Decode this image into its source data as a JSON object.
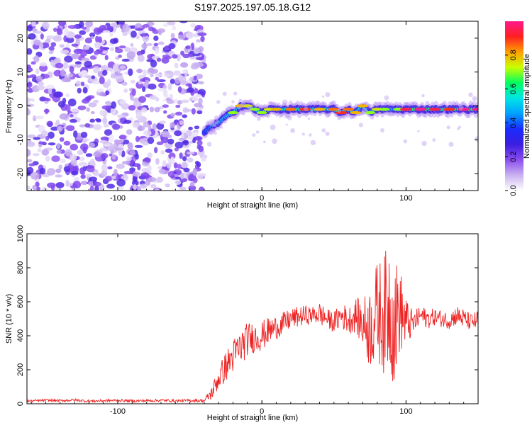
{
  "title": "S197.2025.197.05.18.G12",
  "chart_data": [
    {
      "type": "heatmap",
      "xlabel": "Height of straight line (km)",
      "ylabel": "Frequency (Hz)",
      "xlim": [
        -163,
        150
      ],
      "ylim": [
        -25,
        25
      ],
      "xticks": [
        -100,
        0,
        100
      ],
      "yticks": [
        -20,
        -10,
        0,
        10,
        20
      ],
      "colorbar": {
        "label": "Normalized spectral amplitude",
        "range": [
          0,
          1
        ],
        "ticks": [
          0.0,
          0.2,
          0.4,
          0.6,
          0.8
        ],
        "tick_labels": [
          "0.0",
          "0.2",
          "0.4",
          "0.6",
          "0.8"
        ],
        "colors": [
          "#ffffff",
          "#c9b2f0",
          "#8a4df0",
          "#3b1ee0",
          "#1a2cff",
          "#00a0ff",
          "#00e5e5",
          "#00ff60",
          "#c8ff00",
          "#ffa000",
          "#ff2020",
          "#ff1a8c"
        ]
      },
      "noise_region_x": [
        -163,
        -40
      ],
      "ridge": {
        "x": [
          -40,
          -35,
          -30,
          -25,
          -20,
          -15,
          -10,
          -5,
          0,
          5,
          10,
          20,
          30,
          40,
          50,
          55,
          60,
          65,
          70,
          75,
          80,
          85,
          90,
          95,
          100,
          110,
          120,
          130,
          140,
          150
        ],
        "freq": [
          -8,
          -6,
          -5,
          -3,
          -2,
          0,
          0,
          -1,
          -2,
          -1,
          -1,
          -1,
          -1,
          -1,
          -1,
          -2,
          -1,
          -2,
          0,
          -2,
          -1,
          -1,
          -1,
          -1,
          -1,
          -1,
          -1,
          -1,
          -1,
          -1
        ],
        "amplitude": [
          0.35,
          0.45,
          0.5,
          0.55,
          0.6,
          0.7,
          0.65,
          0.6,
          0.6,
          0.65,
          0.7,
          0.75,
          0.8,
          0.7,
          0.75,
          0.8,
          0.75,
          0.7,
          0.7,
          0.6,
          0.65,
          0.6,
          0.55,
          0.6,
          0.85,
          0.9,
          0.85,
          0.8,
          0.9,
          0.9
        ]
      }
    },
    {
      "type": "line",
      "xlabel": "Height of straight line (km)",
      "ylabel": "SNR (10 * v/v)",
      "xlim": [
        -163,
        150
      ],
      "ylim": [
        0,
        1000
      ],
      "xticks": [
        -100,
        0,
        100
      ],
      "yticks": [
        0,
        200,
        400,
        600,
        800,
        1000
      ],
      "color": "#ee2222",
      "x": [
        -163,
        -150,
        -140,
        -130,
        -120,
        -110,
        -100,
        -90,
        -80,
        -70,
        -60,
        -50,
        -40,
        -35,
        -30,
        -25,
        -20,
        -15,
        -10,
        -5,
        0,
        5,
        10,
        15,
        20,
        25,
        30,
        35,
        40,
        45,
        50,
        55,
        60,
        65,
        70,
        75,
        80,
        85,
        88,
        92,
        95,
        100,
        105,
        110,
        115,
        120,
        125,
        130,
        135,
        140,
        145,
        150
      ],
      "y": [
        15,
        20,
        18,
        22,
        15,
        18,
        20,
        16,
        18,
        20,
        17,
        19,
        18,
        60,
        150,
        220,
        280,
        330,
        380,
        390,
        400,
        430,
        450,
        470,
        500,
        510,
        520,
        520,
        530,
        500,
        480,
        520,
        490,
        520,
        470,
        450,
        540,
        520,
        600,
        470,
        560,
        480,
        470,
        520,
        500,
        510,
        500,
        490,
        520,
        500,
        480,
        490
      ],
      "spread": [
        8,
        8,
        8,
        8,
        8,
        8,
        8,
        8,
        8,
        8,
        8,
        8,
        10,
        40,
        70,
        90,
        100,
        110,
        100,
        90,
        90,
        80,
        70,
        70,
        60,
        60,
        60,
        50,
        70,
        60,
        60,
        80,
        80,
        100,
        150,
        250,
        300,
        350,
        420,
        380,
        280,
        150,
        70,
        60,
        60,
        50,
        50,
        50,
        60,
        60,
        50,
        60
      ]
    }
  ]
}
